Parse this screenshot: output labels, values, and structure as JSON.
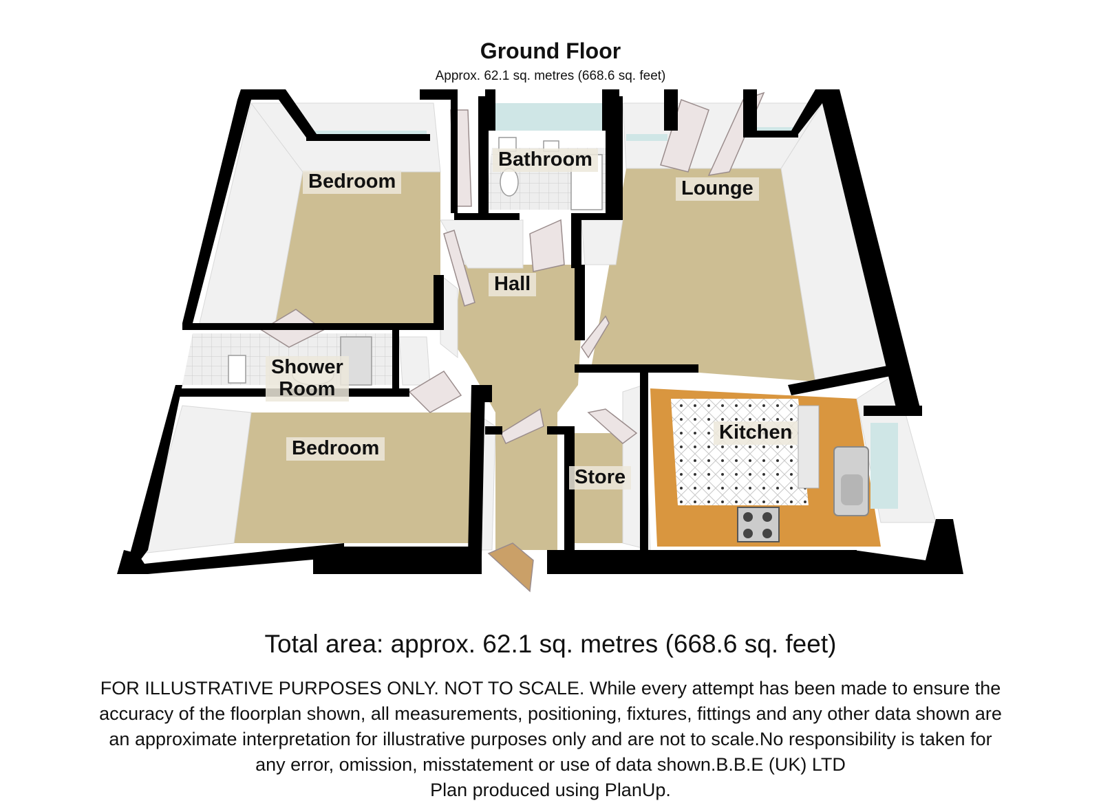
{
  "header": {
    "title": "Ground Floor",
    "subtitle": "Approx.  62.1 sq. metres (668.6 sq. feet)"
  },
  "rooms": {
    "bedroom_1": "Bedroom",
    "bathroom": "Bathroom",
    "lounge": "Lounge",
    "hall": "Hall",
    "shower_room_line1": "Shower",
    "shower_room_line2": "Room",
    "bedroom_2": "Bedroom",
    "kitchen": "Kitchen",
    "store": "Store"
  },
  "footer": {
    "total": "Total area: approx.  62.1 sq. metres (668.6 sq. feet)",
    "disclaimer_lines": [
      "FOR ILLUSTRATIVE PURPOSES ONLY. NOT TO SCALE. While every attempt has been made to ensure the",
      "accuracy of the floorplan shown, all measurements, positioning, fixtures, fittings and any other data shown are",
      "an approximate interpretation for illustrative purposes only and are not to scale.No responsibility is taken for",
      "any error, omission, misstatement or use of data shown.B.B.E (UK) LTD",
      "Plan produced using PlanUp."
    ]
  },
  "colors": {
    "floor_carpet": "#cdbe93",
    "floor_wood": "#d9963f",
    "wall": "#000000",
    "wall_face": "#f2f2f2",
    "window": "#cfe6e6"
  }
}
